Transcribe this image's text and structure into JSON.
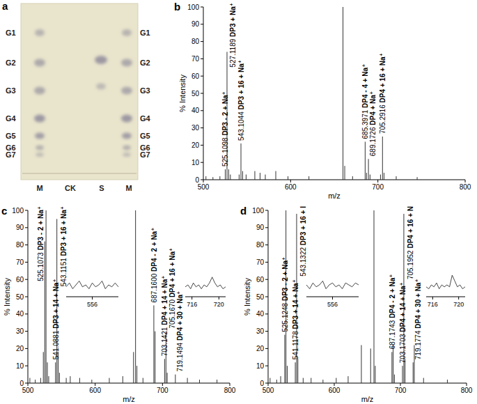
{
  "tlc": {
    "panel": "a",
    "lanes": [
      "M",
      "CK",
      "S",
      "M"
    ],
    "left_labels": [
      "G1",
      "G2",
      "G3",
      "G4",
      "G5",
      "G6",
      "G7"
    ],
    "right_labels": [
      "G1",
      "G2",
      "G3",
      "G4",
      "G5",
      "G6",
      "G7"
    ]
  },
  "chart_data": [
    {
      "panel": "b",
      "type": "stem",
      "x_label": "m/z",
      "y_label": "% Intensity",
      "xlim": [
        500,
        800
      ],
      "xticks": [
        500,
        600,
        700,
        800
      ],
      "ylim": [
        0,
        100
      ],
      "yticks": [
        0,
        10,
        20,
        30,
        40,
        50,
        60,
        70,
        80,
        90,
        100
      ],
      "color": "#333333",
      "x": [
        503,
        511,
        519,
        525.1098,
        527.1189,
        529,
        531,
        541,
        543.1044,
        545,
        549,
        559,
        565,
        571,
        583,
        597,
        621,
        660,
        662,
        671,
        685.3971,
        687,
        689.1726,
        691,
        703,
        705.2916,
        707,
        721,
        745
      ],
      "values": [
        2,
        1.5,
        2,
        6,
        74,
        6,
        3,
        3,
        21,
        5,
        3,
        5,
        4,
        3,
        5,
        2,
        2,
        100,
        8,
        2,
        22,
        4,
        12,
        3,
        3,
        25,
        4,
        2,
        1.5
      ],
      "annotations": [
        {
          "x": 525.1098,
          "y": 6,
          "x_label": "525.1098",
          "label": "DP3 - 2 + Na⁺"
        },
        {
          "x": 527.1189,
          "y": 74,
          "x_label": "527.1189",
          "label": "DP3 + Na⁺"
        },
        {
          "x": 543.1044,
          "y": 21,
          "x_label": "543.1044",
          "label": "DP3 + 16 + Na⁺"
        },
        {
          "x": 685.3971,
          "y": 22,
          "x_label": "685.3971",
          "label": "DP4 - 4 + Na⁺"
        },
        {
          "x": 689.1726,
          "y": 12,
          "x_label": "689.1726",
          "label": "DP4 + Na⁺"
        },
        {
          "x": 705.2916,
          "y": 25,
          "x_label": "705.2916",
          "label": "DP4 + 16 + Na⁺"
        }
      ],
      "insets": []
    },
    {
      "panel": "c",
      "type": "stem",
      "x_label": "m/z",
      "y_label": "% Intensity",
      "xlim": [
        500,
        800
      ],
      "xticks": [
        500,
        600,
        700,
        800
      ],
      "ylim": [
        0,
        100
      ],
      "yticks": [
        0,
        10,
        20,
        30,
        40,
        50,
        60,
        70,
        80,
        90,
        100
      ],
      "color": "#333333",
      "x": [
        503,
        511,
        519,
        523,
        525.1073,
        527,
        529,
        531,
        541.0881,
        543.1151,
        545,
        547,
        557,
        563,
        577,
        595,
        621,
        641,
        657,
        660,
        662,
        671,
        687.16,
        689,
        703.1421,
        705.167,
        707,
        719.1494,
        737,
        755,
        781
      ],
      "values": [
        3,
        2,
        3,
        18,
        82,
        100,
        12,
        4,
        12,
        95,
        18,
        6,
        3,
        4,
        3,
        2,
        3,
        4,
        18,
        100,
        10,
        3,
        45,
        30,
        14,
        30,
        6,
        5,
        3,
        2,
        2
      ],
      "annotations": [
        {
          "x": 525.1073,
          "y": 82,
          "x_label": "525.1073",
          "label": "DP3 - 2 + Na⁺"
        },
        {
          "x": 541.0881,
          "y": 12,
          "x_label": "541.0881",
          "label": "DP3 + 14 + Na⁺"
        },
        {
          "x": 543.1151,
          "y": 95,
          "x_label": "543.1151",
          "label": "DP3 + 16 + Na⁺"
        },
        {
          "x": 687.16,
          "y": 45,
          "x_label": "687.1600",
          "label": "DP4 - 2 + Na⁺"
        },
        {
          "x": 703.1421,
          "y": 14,
          "x_label": "703.1421",
          "label": "DP4 + 14 + Na⁺"
        },
        {
          "x": 705.167,
          "y": 30,
          "x_label": "705.1670",
          "label": "DP4 + 16 + Na⁺"
        },
        {
          "x": 719.1494,
          "y": 5,
          "x_label": "719.1494",
          "label": "DP4 + 30 + Na⁺"
        }
      ],
      "insets": [
        {
          "xlim": [
            552,
            560
          ],
          "xticks": [
            556
          ],
          "ylim": [
            0,
            10
          ],
          "x": [
            552,
            552.5,
            553,
            553.5,
            554,
            554.5,
            555,
            555.5,
            556,
            556.5,
            557,
            557.5,
            558,
            558.5,
            559,
            559.5,
            560
          ],
          "values": [
            4,
            6,
            3,
            5,
            7,
            4,
            5,
            3,
            6,
            4,
            5,
            7,
            3,
            5,
            4,
            6,
            4
          ]
        },
        {
          "xlim": [
            715,
            721
          ],
          "xticks": [
            716,
            720
          ],
          "ylim": [
            0,
            10
          ],
          "x": [
            715,
            715.4,
            715.8,
            716.2,
            716.6,
            717,
            717.4,
            717.8,
            718.2,
            718.6,
            719,
            719.4,
            719.8,
            720.2,
            720.6,
            721
          ],
          "values": [
            4,
            5,
            3,
            6,
            4,
            5,
            3,
            5,
            4,
            6,
            9,
            6,
            4,
            5,
            3,
            4
          ]
        }
      ]
    },
    {
      "panel": "d",
      "type": "stem",
      "x_label": "m/z",
      "y_label": "% Intensity",
      "xlim": [
        500,
        800
      ],
      "xticks": [
        500,
        600,
        700,
        800
      ],
      "ylim": [
        0,
        100
      ],
      "yticks": [
        0,
        10,
        20,
        30,
        40,
        50,
        60,
        70,
        80,
        90,
        100
      ],
      "color": "#333333",
      "x": [
        503,
        513,
        519,
        525.1248,
        527,
        529,
        541.1178,
        543.1322,
        545,
        553,
        565,
        583,
        603,
        621,
        641,
        655,
        660,
        662,
        687.1743,
        689,
        691,
        703.1703,
        705.1952,
        707,
        719.1774,
        721,
        735,
        771
      ],
      "values": [
        3,
        2,
        4,
        28,
        100,
        10,
        12,
        98,
        14,
        3,
        3,
        2,
        3,
        4,
        22,
        20,
        100,
        10,
        18,
        22,
        5,
        10,
        98,
        14,
        12,
        22,
        3,
        2
      ],
      "annotations": [
        {
          "x": 525.1248,
          "y": 28,
          "x_label": "525.1248",
          "label": "DP3 - 2 + Na⁺"
        },
        {
          "x": 541.1178,
          "y": 12,
          "x_label": "541.1178",
          "label": "DP3 + 14 + Na⁺"
        },
        {
          "x": 543.1322,
          "y": 98,
          "x_label": "543.1322",
          "label": "DP3 + 16 + I"
        },
        {
          "x": 687.1743,
          "y": 18,
          "x_label": "687.1743",
          "label": "DP4 - 2 + Na⁺"
        },
        {
          "x": 703.1703,
          "y": 10,
          "x_label": "703.1703",
          "label": "DP4 + 14 + Na⁺"
        },
        {
          "x": 705.1952,
          "y": 98,
          "x_label": "705.1952",
          "label": "DP4 + 16 + N"
        },
        {
          "x": 719.1774,
          "y": 12,
          "x_label": "719.1774",
          "label": "DP4 + 30 + Na⁺"
        }
      ],
      "insets": [
        {
          "xlim": [
            552,
            560
          ],
          "xticks": [
            556
          ],
          "ylim": [
            0,
            10
          ],
          "x": [
            552,
            552.5,
            553,
            553.5,
            554,
            554.5,
            555,
            555.5,
            556,
            556.5,
            557,
            557.5,
            558,
            558.5,
            559,
            559.5,
            560
          ],
          "values": [
            5,
            3,
            6,
            4,
            5,
            7,
            3,
            5,
            6,
            4,
            5,
            3,
            6,
            5,
            4,
            6,
            5
          ]
        },
        {
          "xlim": [
            715,
            721
          ],
          "xticks": [
            716,
            720
          ],
          "ylim": [
            0,
            10
          ],
          "x": [
            715,
            715.4,
            715.8,
            716.2,
            716.6,
            717,
            717.4,
            717.8,
            718.2,
            718.6,
            719,
            719.4,
            719.8,
            720.2,
            720.6,
            721
          ],
          "values": [
            4,
            3,
            5,
            4,
            6,
            3,
            5,
            4,
            5,
            4,
            10,
            7,
            4,
            5,
            3,
            4
          ]
        }
      ]
    }
  ]
}
